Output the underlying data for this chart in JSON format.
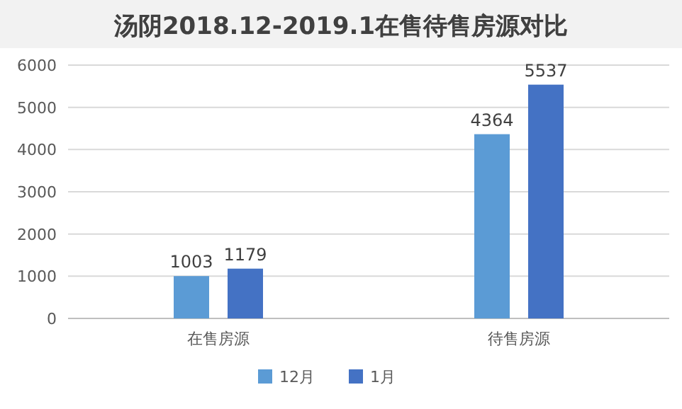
{
  "chart_data": {
    "type": "bar",
    "title": "汤阴2018.12-2019.1在售待售房源对比",
    "categories": [
      "在售房源",
      "待售房源"
    ],
    "series": [
      {
        "name": "12月",
        "color": "#5b9bd5",
        "values": [
          1003,
          4364
        ]
      },
      {
        "name": "1月",
        "color": "#4472c4",
        "values": [
          1179,
          5537
        ]
      }
    ],
    "ylim": [
      0,
      6000
    ],
    "yticks": [
      0,
      1000,
      2000,
      3000,
      4000,
      5000,
      6000
    ],
    "grid": "y",
    "legend": "bottom",
    "data_labels": true
  }
}
